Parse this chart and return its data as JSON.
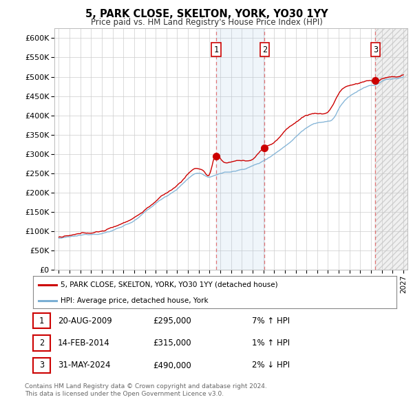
{
  "title": "5, PARK CLOSE, SKELTON, YORK, YO30 1YY",
  "subtitle": "Price paid vs. HM Land Registry's House Price Index (HPI)",
  "ylabel_ticks": [
    "£0",
    "£50K",
    "£100K",
    "£150K",
    "£200K",
    "£250K",
    "£300K",
    "£350K",
    "£400K",
    "£450K",
    "£500K",
    "£550K",
    "£600K"
  ],
  "ytick_values": [
    0,
    50000,
    100000,
    150000,
    200000,
    250000,
    300000,
    350000,
    400000,
    450000,
    500000,
    550000,
    600000
  ],
  "ylim": [
    0,
    625000
  ],
  "xmin_year": 1995,
  "xmax_year": 2027,
  "xtick_years": [
    1995,
    1996,
    1997,
    1998,
    1999,
    2000,
    2001,
    2002,
    2003,
    2004,
    2005,
    2006,
    2007,
    2008,
    2009,
    2010,
    2011,
    2012,
    2013,
    2014,
    2015,
    2016,
    2017,
    2018,
    2019,
    2020,
    2021,
    2022,
    2023,
    2024,
    2025,
    2026,
    2027
  ],
  "sale_points": [
    {
      "year": 2009.63,
      "price": 295000,
      "label": "1"
    },
    {
      "year": 2014.12,
      "price": 315000,
      "label": "2"
    },
    {
      "year": 2024.41,
      "price": 490000,
      "label": "3"
    }
  ],
  "sale_table": [
    {
      "num": "1",
      "date": "20-AUG-2009",
      "price": "£295,000",
      "hpi": "7% ↑ HPI"
    },
    {
      "num": "2",
      "date": "14-FEB-2014",
      "price": "£315,000",
      "hpi": "1% ↑ HPI"
    },
    {
      "num": "3",
      "date": "31-MAY-2024",
      "price": "£490,000",
      "hpi": "2% ↓ HPI"
    }
  ],
  "shade_region": [
    2009.63,
    2014.12
  ],
  "hpi_color": "#7bafd4",
  "sale_color": "#cc0000",
  "legend_sale_label": "5, PARK CLOSE, SKELTON, YORK, YO30 1YY (detached house)",
  "legend_hpi_label": "HPI: Average price, detached house, York",
  "footer_line1": "Contains HM Land Registry data © Crown copyright and database right 2024.",
  "footer_line2": "This data is licensed under the Open Government Licence v3.0.",
  "bg_color": "#ffffff",
  "plot_bg_color": "#ffffff",
  "grid_color": "#cccccc"
}
